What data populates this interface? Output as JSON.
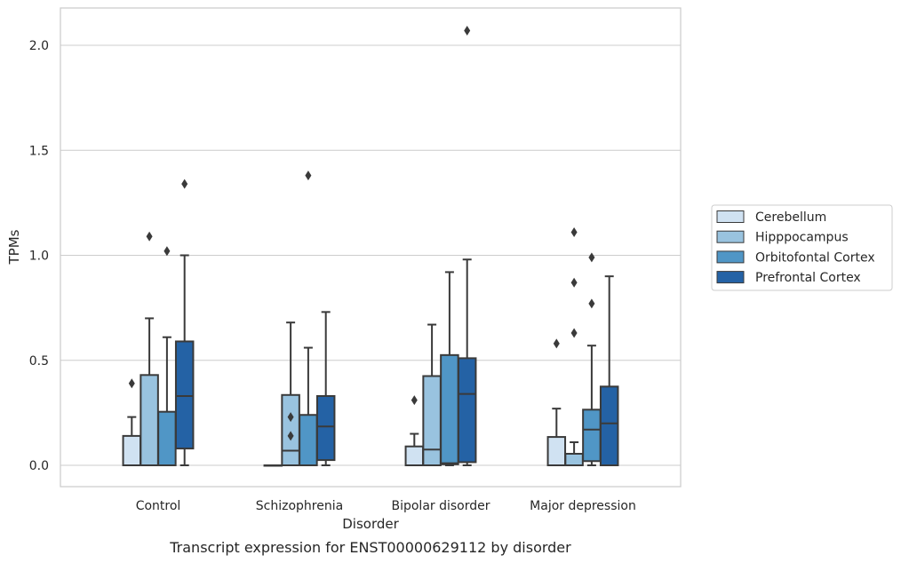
{
  "chart_data": {
    "type": "boxplot",
    "caption": "Transcript expression for ENST00000629112 by disorder",
    "xlabel": "Disorder",
    "ylabel": "TPMs",
    "ylim": [
      -0.1,
      2.18
    ],
    "yticks": [
      0.0,
      0.5,
      1.0,
      1.5,
      2.0
    ],
    "ytick_labels": [
      "0.0",
      "0.5",
      "1.0",
      "1.5",
      "2.0"
    ],
    "grid": true,
    "legend_position": "right",
    "categories": [
      "Control",
      "Schizophrenia",
      "Bipolar disorder",
      "Major depression"
    ],
    "series": [
      {
        "name": "Cerebellum",
        "color": "#d0e2f2",
        "boxes": [
          {
            "whislo": 0.0,
            "q1": 0.0,
            "med": 0.0,
            "q3": 0.14,
            "whishi": 0.23,
            "fliers": [
              0.39
            ]
          },
          {
            "whislo": 0.0,
            "q1": 0.0,
            "med": 0.0,
            "q3": 0.0,
            "whishi": 0.0,
            "fliers": []
          },
          {
            "whislo": 0.0,
            "q1": 0.0,
            "med": 0.0,
            "q3": 0.09,
            "whishi": 0.15,
            "fliers": [
              0.31
            ]
          },
          {
            "whislo": 0.0,
            "q1": 0.0,
            "med": 0.0,
            "q3": 0.135,
            "whishi": 0.27,
            "fliers": [
              0.58
            ]
          }
        ]
      },
      {
        "name": "Hipppocampus",
        "color": "#99c3df",
        "boxes": [
          {
            "whislo": 0.0,
            "q1": 0.0,
            "med": 0.0,
            "q3": 0.43,
            "whishi": 0.7,
            "fliers": [
              1.09
            ]
          },
          {
            "whislo": 0.0,
            "q1": 0.0,
            "med": 0.07,
            "q3": 0.335,
            "whishi": 0.68,
            "fliers": [
              0.14,
              0.23
            ]
          },
          {
            "whislo": 0.0,
            "q1": 0.0,
            "med": 0.075,
            "q3": 0.425,
            "whishi": 0.67,
            "fliers": []
          },
          {
            "whislo": 0.0,
            "q1": 0.0,
            "med": 0.0,
            "q3": 0.055,
            "whishi": 0.11,
            "fliers": [
              0.63,
              0.87,
              1.11
            ]
          }
        ]
      },
      {
        "name": "Orbitofontal Cortex",
        "color": "#5096c6",
        "boxes": [
          {
            "whislo": 0.0,
            "q1": 0.0,
            "med": 0.0,
            "q3": 0.255,
            "whishi": 0.61,
            "fliers": [
              1.02
            ]
          },
          {
            "whislo": 0.0,
            "q1": 0.0,
            "med": 0.0,
            "q3": 0.24,
            "whishi": 0.56,
            "fliers": [
              1.38
            ]
          },
          {
            "whislo": 0.0,
            "q1": 0.005,
            "med": 0.01,
            "q3": 0.525,
            "whishi": 0.92,
            "fliers": []
          },
          {
            "whislo": 0.0,
            "q1": 0.02,
            "med": 0.17,
            "q3": 0.265,
            "whishi": 0.57,
            "fliers": [
              0.77,
              0.99
            ]
          }
        ]
      },
      {
        "name": "Prefrontal Cortex",
        "color": "#2462a5",
        "boxes": [
          {
            "whislo": 0.0,
            "q1": 0.08,
            "med": 0.33,
            "q3": 0.59,
            "whishi": 1.0,
            "fliers": [
              1.34
            ]
          },
          {
            "whislo": 0.0,
            "q1": 0.025,
            "med": 0.185,
            "q3": 0.33,
            "whishi": 0.73,
            "fliers": []
          },
          {
            "whislo": 0.0,
            "q1": 0.015,
            "med": 0.34,
            "q3": 0.51,
            "whishi": 0.98,
            "fliers": [
              2.07
            ]
          },
          {
            "whislo": 0.0,
            "q1": 0.0,
            "med": 0.2,
            "q3": 0.375,
            "whishi": 0.9,
            "fliers": []
          }
        ]
      }
    ]
  }
}
